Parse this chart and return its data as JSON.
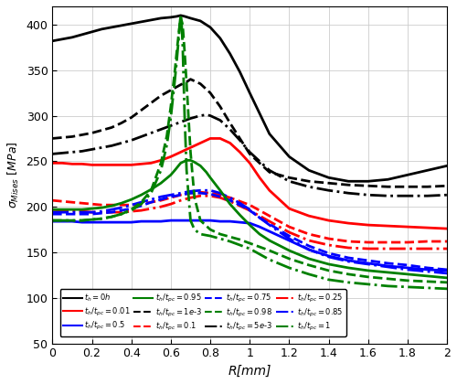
{
  "title": "",
  "xlabel": "R[mm]",
  "ylabel": "$\\sigma_{Mises}\\,[MPa]$",
  "xlim": [
    0,
    2.0
  ],
  "ylim": [
    50,
    420
  ],
  "yticks": [
    50,
    100,
    150,
    200,
    250,
    300,
    350,
    400
  ],
  "xticks": [
    0,
    0.2,
    0.4,
    0.6,
    0.8,
    1.0,
    1.2,
    1.4,
    1.6,
    1.8,
    2.0
  ],
  "curves": [
    {
      "label": "$t_h = 0h$",
      "color": "black",
      "linestyle": "-",
      "linewidth": 2.0,
      "x": [
        0,
        0.05,
        0.1,
        0.15,
        0.2,
        0.25,
        0.3,
        0.35,
        0.4,
        0.45,
        0.5,
        0.55,
        0.6,
        0.63,
        0.65,
        0.67,
        0.7,
        0.75,
        0.8,
        0.85,
        0.9,
        0.95,
        1.0,
        1.1,
        1.2,
        1.3,
        1.4,
        1.5,
        1.6,
        1.7,
        1.8,
        1.9,
        2.0
      ],
      "y": [
        382,
        384,
        386,
        389,
        392,
        395,
        397,
        399,
        401,
        403,
        405,
        407,
        408,
        409,
        410,
        409,
        407,
        404,
        397,
        385,
        368,
        348,
        325,
        280,
        255,
        240,
        232,
        228,
        228,
        230,
        235,
        240,
        245
      ]
    },
    {
      "label": "$t_h/t_{pc} = 1e-3$",
      "color": "black",
      "linestyle": "--",
      "linewidth": 2.0,
      "x": [
        0,
        0.05,
        0.1,
        0.15,
        0.2,
        0.25,
        0.3,
        0.35,
        0.4,
        0.45,
        0.5,
        0.55,
        0.6,
        0.65,
        0.68,
        0.7,
        0.72,
        0.75,
        0.8,
        0.85,
        0.9,
        0.95,
        1.0,
        1.1,
        1.2,
        1.3,
        1.4,
        1.5,
        1.6,
        1.7,
        1.8,
        1.9,
        2.0
      ],
      "y": [
        275,
        276,
        277,
        279,
        281,
        284,
        287,
        292,
        298,
        306,
        314,
        322,
        328,
        334,
        337,
        340,
        338,
        335,
        325,
        310,
        292,
        275,
        258,
        238,
        232,
        228,
        226,
        224,
        223,
        222,
        222,
        222,
        223
      ]
    },
    {
      "label": "$t_h/t_{pc} = 5e-3$",
      "color": "black",
      "linestyle": "-.",
      "linewidth": 2.0,
      "x": [
        0,
        0.05,
        0.1,
        0.15,
        0.2,
        0.25,
        0.3,
        0.35,
        0.4,
        0.45,
        0.5,
        0.55,
        0.6,
        0.65,
        0.7,
        0.75,
        0.78,
        0.8,
        0.85,
        0.9,
        0.95,
        1.0,
        1.1,
        1.2,
        1.3,
        1.4,
        1.5,
        1.6,
        1.7,
        1.8,
        1.9,
        2.0
      ],
      "y": [
        258,
        259,
        260,
        261,
        263,
        265,
        267,
        270,
        273,
        277,
        281,
        285,
        289,
        293,
        297,
        300,
        301,
        300,
        295,
        285,
        273,
        260,
        240,
        228,
        222,
        218,
        215,
        213,
        212,
        212,
        212,
        213
      ]
    },
    {
      "label": "$t_h/t_{pc} = 0.01$",
      "color": "red",
      "linestyle": "-",
      "linewidth": 2.0,
      "x": [
        0,
        0.05,
        0.1,
        0.15,
        0.2,
        0.25,
        0.3,
        0.35,
        0.4,
        0.45,
        0.5,
        0.55,
        0.6,
        0.65,
        0.7,
        0.75,
        0.8,
        0.85,
        0.9,
        0.95,
        1.0,
        1.05,
        1.1,
        1.2,
        1.3,
        1.4,
        1.5,
        1.6,
        1.7,
        1.8,
        1.9,
        2.0
      ],
      "y": [
        248,
        248,
        247,
        247,
        246,
        246,
        246,
        246,
        246,
        247,
        248,
        251,
        255,
        260,
        265,
        270,
        275,
        275,
        270,
        260,
        248,
        232,
        218,
        198,
        190,
        185,
        182,
        180,
        179,
        178,
        177,
        176
      ]
    },
    {
      "label": "$t_h/t_{pc} = 0.1$",
      "color": "red",
      "linestyle": "--",
      "linewidth": 2.0,
      "x": [
        0,
        0.05,
        0.1,
        0.15,
        0.2,
        0.25,
        0.3,
        0.35,
        0.4,
        0.45,
        0.5,
        0.55,
        0.6,
        0.65,
        0.7,
        0.75,
        0.8,
        0.85,
        0.9,
        0.95,
        1.0,
        1.05,
        1.1,
        1.2,
        1.3,
        1.4,
        1.5,
        1.6,
        1.7,
        1.8,
        1.9,
        2.0
      ],
      "y": [
        207,
        206,
        205,
        204,
        203,
        202,
        202,
        202,
        202,
        203,
        205,
        207,
        210,
        213,
        215,
        216,
        215,
        213,
        210,
        206,
        202,
        196,
        190,
        178,
        170,
        165,
        162,
        161,
        161,
        161,
        162,
        162
      ]
    },
    {
      "label": "$t_h/t_{pc} = 0.25$",
      "color": "red",
      "linestyle": "-.",
      "linewidth": 2.0,
      "x": [
        0,
        0.05,
        0.1,
        0.15,
        0.2,
        0.25,
        0.3,
        0.35,
        0.4,
        0.45,
        0.5,
        0.55,
        0.6,
        0.65,
        0.7,
        0.75,
        0.8,
        0.85,
        0.9,
        0.95,
        1.0,
        1.05,
        1.1,
        1.2,
        1.3,
        1.4,
        1.5,
        1.6,
        1.7,
        1.8,
        1.9,
        2.0
      ],
      "y": [
        197,
        196,
        196,
        195,
        194,
        194,
        194,
        194,
        195,
        196,
        198,
        200,
        203,
        207,
        210,
        212,
        212,
        210,
        206,
        201,
        196,
        190,
        184,
        172,
        163,
        158,
        155,
        154,
        154,
        154,
        154,
        154
      ]
    },
    {
      "label": "$t_h/t_{pc} = 0.5$",
      "color": "blue",
      "linestyle": "-",
      "linewidth": 2.0,
      "x": [
        0,
        0.05,
        0.1,
        0.15,
        0.2,
        0.25,
        0.3,
        0.35,
        0.4,
        0.45,
        0.5,
        0.55,
        0.6,
        0.65,
        0.7,
        0.75,
        0.8,
        0.85,
        0.9,
        0.95,
        1.0,
        1.05,
        1.1,
        1.2,
        1.3,
        1.4,
        1.5,
        1.6,
        1.7,
        1.8,
        1.9,
        2.0
      ],
      "y": [
        184,
        184,
        184,
        183,
        183,
        183,
        183,
        183,
        183,
        184,
        184,
        184,
        185,
        185,
        185,
        185,
        185,
        184,
        184,
        183,
        182,
        178,
        173,
        163,
        153,
        146,
        141,
        138,
        135,
        133,
        131,
        130
      ]
    },
    {
      "label": "$t_h/t_{pc} = 0.75$",
      "color": "blue",
      "linestyle": "--",
      "linewidth": 2.0,
      "x": [
        0,
        0.05,
        0.1,
        0.15,
        0.2,
        0.25,
        0.3,
        0.35,
        0.4,
        0.45,
        0.5,
        0.55,
        0.6,
        0.65,
        0.7,
        0.75,
        0.8,
        0.85,
        0.9,
        0.95,
        1.0,
        1.05,
        1.1,
        1.2,
        1.3,
        1.4,
        1.5,
        1.6,
        1.7,
        1.8,
        1.9,
        2.0
      ],
      "y": [
        192,
        192,
        192,
        192,
        192,
        193,
        194,
        196,
        198,
        201,
        205,
        208,
        211,
        213,
        215,
        215,
        214,
        211,
        207,
        202,
        196,
        188,
        181,
        168,
        157,
        149,
        144,
        141,
        138,
        136,
        133,
        131
      ]
    },
    {
      "label": "$t_h/t_{pc} = 0.85$",
      "color": "blue",
      "linestyle": "-.",
      "linewidth": 2.0,
      "x": [
        0,
        0.05,
        0.1,
        0.15,
        0.2,
        0.25,
        0.3,
        0.35,
        0.4,
        0.45,
        0.5,
        0.55,
        0.6,
        0.65,
        0.7,
        0.75,
        0.8,
        0.85,
        0.9,
        0.95,
        1.0,
        1.05,
        1.1,
        1.2,
        1.3,
        1.4,
        1.5,
        1.6,
        1.7,
        1.8,
        1.9,
        2.0
      ],
      "y": [
        194,
        194,
        194,
        194,
        194,
        195,
        197,
        199,
        202,
        205,
        208,
        211,
        213,
        215,
        217,
        218,
        218,
        215,
        210,
        204,
        197,
        188,
        180,
        165,
        153,
        145,
        140,
        137,
        134,
        131,
        129,
        127
      ]
    },
    {
      "label": "$t_h/t_{pc} = 0.95$",
      "color": "green",
      "linestyle": "-",
      "linewidth": 2.0,
      "x": [
        0,
        0.05,
        0.1,
        0.15,
        0.2,
        0.25,
        0.3,
        0.35,
        0.4,
        0.45,
        0.5,
        0.55,
        0.6,
        0.62,
        0.65,
        0.68,
        0.7,
        0.72,
        0.75,
        0.78,
        0.8,
        0.85,
        0.9,
        0.95,
        1.0,
        1.05,
        1.1,
        1.2,
        1.3,
        1.4,
        1.5,
        1.6,
        1.7,
        1.8,
        1.9,
        2.0
      ],
      "y": [
        197,
        197,
        197,
        197,
        198,
        199,
        201,
        204,
        208,
        213,
        219,
        226,
        235,
        240,
        248,
        251,
        251,
        249,
        245,
        238,
        232,
        218,
        203,
        191,
        180,
        170,
        163,
        152,
        143,
        137,
        133,
        130,
        128,
        126,
        124,
        122
      ]
    },
    {
      "label": "$t_h/t_{pc} = 0.98$",
      "color": "green",
      "linestyle": "--",
      "linewidth": 2.0,
      "x": [
        0,
        0.05,
        0.1,
        0.15,
        0.2,
        0.25,
        0.3,
        0.35,
        0.4,
        0.45,
        0.5,
        0.55,
        0.58,
        0.6,
        0.62,
        0.63,
        0.64,
        0.65,
        0.66,
        0.67,
        0.68,
        0.7,
        0.72,
        0.75,
        0.8,
        0.85,
        0.9,
        0.95,
        1.0,
        1.05,
        1.1,
        1.2,
        1.3,
        1.4,
        1.5,
        1.6,
        1.7,
        1.8,
        1.9,
        2.0
      ],
      "y": [
        185,
        185,
        185,
        185,
        186,
        187,
        189,
        192,
        197,
        205,
        218,
        248,
        278,
        310,
        348,
        370,
        390,
        408,
        400,
        370,
        335,
        260,
        210,
        185,
        175,
        170,
        167,
        164,
        160,
        156,
        152,
        143,
        136,
        130,
        126,
        123,
        121,
        119,
        118,
        117
      ]
    },
    {
      "label": "$t_h/t_{pc} = 1$",
      "color": "green",
      "linestyle": "-.",
      "linewidth": 2.0,
      "x": [
        0,
        0.05,
        0.1,
        0.15,
        0.2,
        0.25,
        0.3,
        0.35,
        0.4,
        0.45,
        0.5,
        0.55,
        0.58,
        0.6,
        0.62,
        0.63,
        0.64,
        0.645,
        0.65,
        0.655,
        0.66,
        0.67,
        0.68,
        0.7,
        0.72,
        0.75,
        0.8,
        0.85,
        0.9,
        0.95,
        1.0,
        1.05,
        1.1,
        1.2,
        1.3,
        1.4,
        1.5,
        1.6,
        1.7,
        1.8,
        1.9,
        2.0
      ],
      "y": [
        185,
        185,
        185,
        185,
        186,
        187,
        189,
        192,
        196,
        203,
        215,
        240,
        268,
        298,
        338,
        360,
        385,
        400,
        410,
        400,
        378,
        300,
        240,
        185,
        175,
        170,
        168,
        165,
        162,
        158,
        154,
        148,
        142,
        133,
        126,
        120,
        117,
        115,
        113,
        112,
        111,
        110
      ]
    }
  ],
  "legend_entries": [
    {
      "label": "$t_h = 0h$",
      "color": "black",
      "linestyle": "-"
    },
    {
      "label": "$t_h/t_{pc} = 0.01$",
      "color": "red",
      "linestyle": "-"
    },
    {
      "label": "$t_h/t_{pc} = 0.5$",
      "color": "blue",
      "linestyle": "-"
    },
    {
      "label": "$t_h/t_{pc} = 0.95$",
      "color": "green",
      "linestyle": "-"
    },
    {
      "label": "$t_h/t_{pc} = 1e-3$",
      "color": "black",
      "linestyle": "--"
    },
    {
      "label": "$t_h/t_{pc} = 0.1$",
      "color": "red",
      "linestyle": "--"
    },
    {
      "label": "$t_h/t_{pc} = 0.75$",
      "color": "blue",
      "linestyle": "--"
    },
    {
      "label": "$t_h/t_{pc} = 0.98$",
      "color": "green",
      "linestyle": "--"
    },
    {
      "label": "$t_h/t_{pc} = 5e-3$",
      "color": "black",
      "linestyle": "-."
    },
    {
      "label": "$t_h/t_{pc} = 0.25$",
      "color": "red",
      "linestyle": "-."
    },
    {
      "label": "$t_h/t_{pc} = 0.85$",
      "color": "blue",
      "linestyle": "-."
    },
    {
      "label": "$t_h/t_{pc} = 1$",
      "color": "green",
      "linestyle": "-."
    }
  ]
}
